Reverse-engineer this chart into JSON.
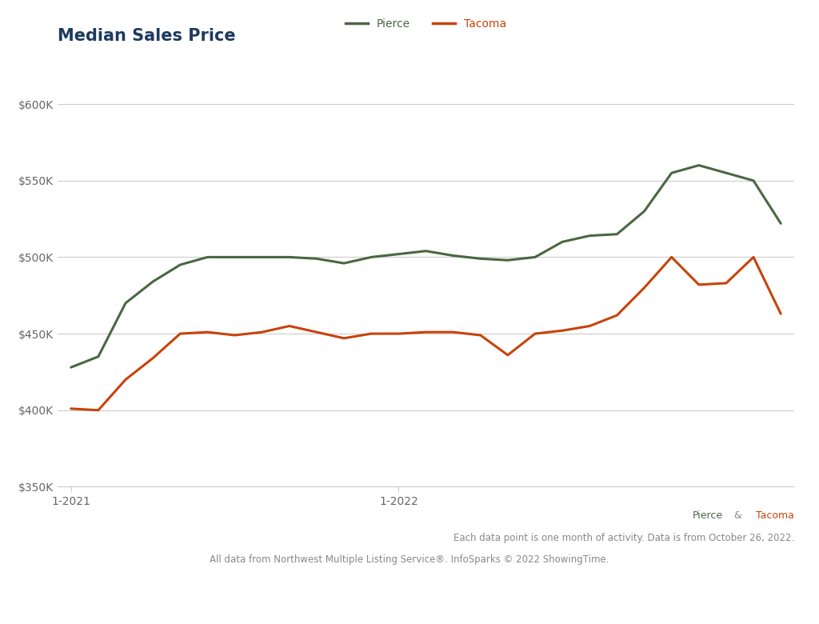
{
  "title": "Median Sales Price",
  "pierce_color": "#4a6741",
  "tacoma_color": "#c8430a",
  "background_color": "#ffffff",
  "grid_color": "#cccccc",
  "title_color": "#1e3a5f",
  "ytick_label_color": "#666666",
  "xtick_label_color": "#666666",
  "ylim": [
    350000,
    615000
  ],
  "yticks": [
    350000,
    400000,
    450000,
    500000,
    550000,
    600000
  ],
  "ytick_labels": [
    "$350K",
    "$400K",
    "$450K",
    "$500K",
    "$550K",
    "$600K"
  ],
  "xtick_positions": [
    0,
    12
  ],
  "xtick_labels": [
    "1-2021",
    "1-2022"
  ],
  "pierce_values": [
    428000,
    435000,
    470000,
    484000,
    495000,
    500000,
    500000,
    500000,
    500000,
    499000,
    496000,
    500000,
    502000,
    504000,
    501000,
    499000,
    498000,
    500000,
    510000,
    514000,
    515000,
    530000,
    555000,
    560000,
    555000,
    550000,
    522000
  ],
  "tacoma_values": [
    401000,
    400000,
    420000,
    434000,
    450000,
    451000,
    449000,
    451000,
    455000,
    451000,
    447000,
    450000,
    450000,
    451000,
    451000,
    449000,
    436000,
    450000,
    452000,
    455000,
    462000,
    480000,
    500000,
    482000,
    483000,
    500000,
    463000
  ],
  "n_points": 27,
  "footer_line1": "Each data point is one month of activity. Data is from October 26, 2022.",
  "footer_line2": "All data from Northwest Multiple Listing Service®. InfoSparks © 2022 ShowingTime.",
  "pierce_tacoma_label": "Pierce & Tacoma",
  "amp_color": "#888888"
}
